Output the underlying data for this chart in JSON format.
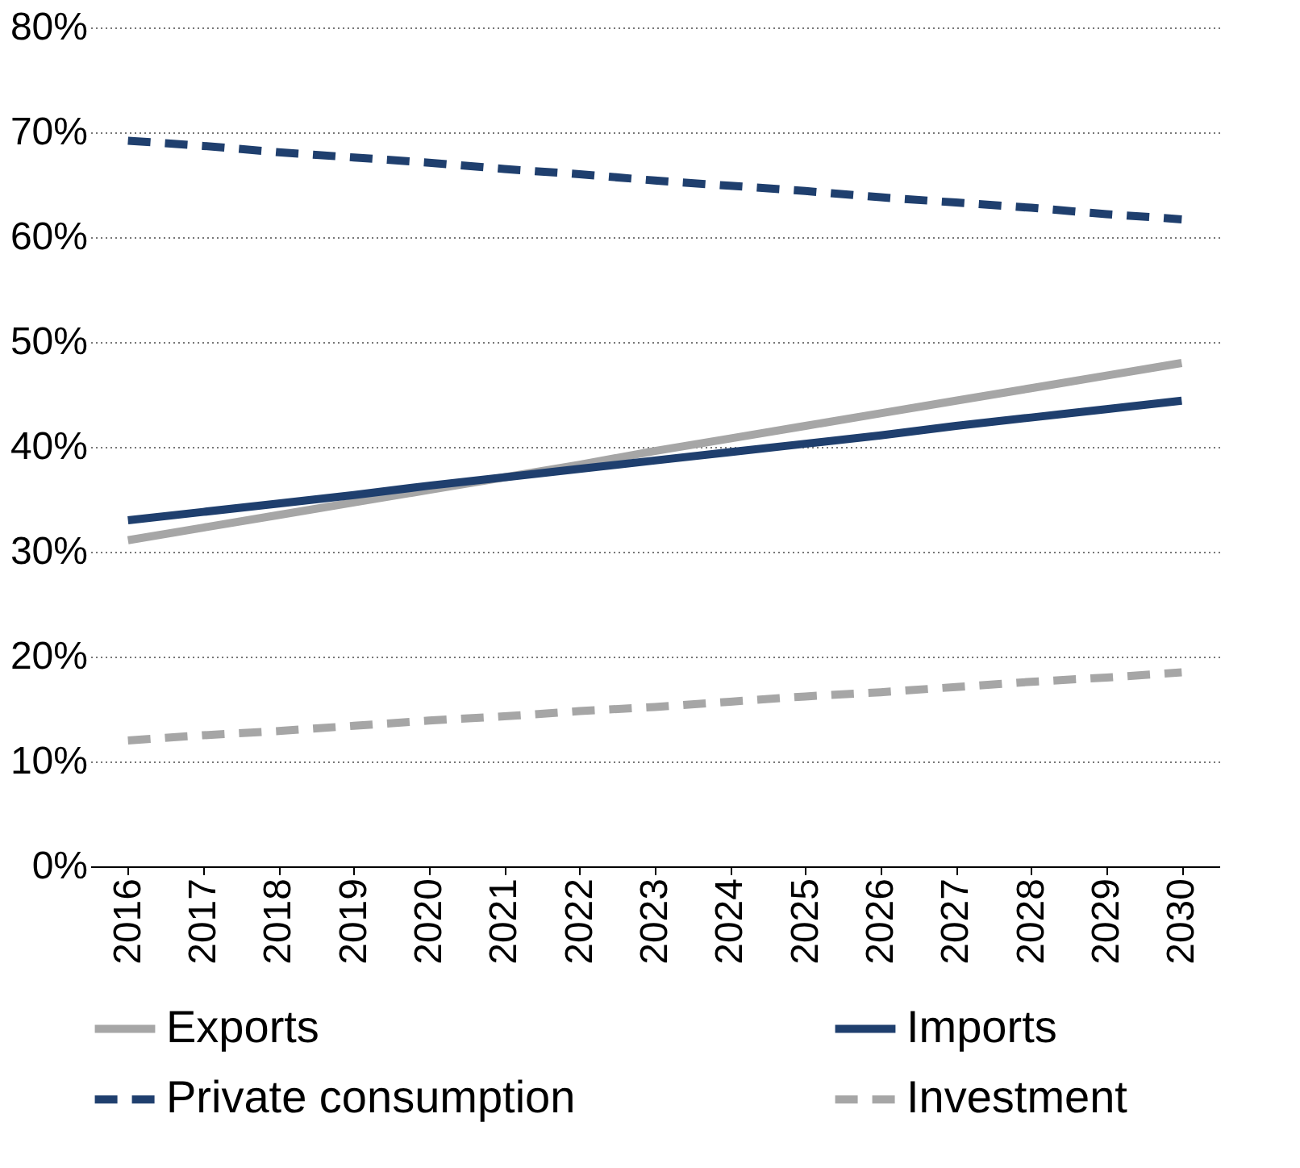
{
  "chart_data": {
    "type": "line",
    "categories": [
      "2016",
      "2017",
      "2018",
      "2019",
      "2020",
      "2021",
      "2022",
      "2023",
      "2024",
      "2025",
      "2026",
      "2027",
      "2028",
      "2029",
      "2030"
    ],
    "series": [
      {
        "name": "Exports",
        "color": "#a6a6a6",
        "line_style": "solid",
        "values": [
          31.1,
          32.3,
          33.5,
          34.7,
          35.9,
          37.1,
          38.3,
          39.6,
          40.8,
          42.0,
          43.2,
          44.4,
          45.6,
          46.8,
          48.0
        ]
      },
      {
        "name": "Imports",
        "color": "#1f3f6e",
        "line_style": "solid",
        "values": [
          33.0,
          33.8,
          34.6,
          35.4,
          36.3,
          37.1,
          37.9,
          38.7,
          39.5,
          40.3,
          41.1,
          42.0,
          42.8,
          43.6,
          44.4
        ]
      },
      {
        "name": "Private consumption",
        "color": "#1f3f6e",
        "line_style": "dashed",
        "values": [
          69.2,
          68.7,
          68.1,
          67.6,
          67.1,
          66.5,
          66.0,
          65.4,
          64.9,
          64.4,
          63.8,
          63.3,
          62.8,
          62.2,
          61.7
        ]
      },
      {
        "name": "Investment",
        "color": "#a6a6a6",
        "line_style": "dashed",
        "values": [
          12.0,
          12.5,
          12.9,
          13.4,
          13.9,
          14.3,
          14.8,
          15.2,
          15.7,
          16.2,
          16.6,
          17.1,
          17.6,
          18.0,
          18.5
        ]
      }
    ],
    "ylim": [
      0,
      80
    ],
    "yticks": [
      {
        "value": 0,
        "label": "0%"
      },
      {
        "value": 10,
        "label": "10%"
      },
      {
        "value": 20,
        "label": "20%"
      },
      {
        "value": 30,
        "label": "30%"
      },
      {
        "value": 40,
        "label": "40%"
      },
      {
        "value": 50,
        "label": "50%"
      },
      {
        "value": 60,
        "label": "60%"
      },
      {
        "value": 70,
        "label": "70%"
      },
      {
        "value": 80,
        "label": "80%"
      }
    ],
    "grid": "y",
    "legend": "bottom"
  }
}
